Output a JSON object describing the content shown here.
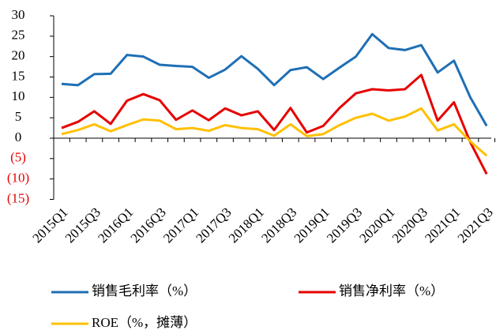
{
  "chart_data": {
    "type": "line",
    "categories": [
      "2015Q1",
      null,
      "2015Q3",
      null,
      "2016Q1",
      null,
      "2016Q3",
      null,
      "2017Q1",
      null,
      "2017Q3",
      null,
      "2018Q1",
      null,
      "2018Q3",
      null,
      "2019Q1",
      null,
      "2019Q3",
      null,
      "2020Q1",
      null,
      "2020Q3",
      null,
      "2021Q1",
      null,
      "2021Q3"
    ],
    "series": [
      {
        "name": "销售毛利率（%）",
        "color": "#1f6fb5",
        "values": [
          13.3,
          13,
          15.7,
          15.8,
          20.4,
          20,
          18,
          17.7,
          17.5,
          14.8,
          16.8,
          20.1,
          17,
          13,
          16.7,
          17.4,
          14.5,
          17.3,
          20,
          25.5,
          22.1,
          21.6,
          22.8,
          16.1,
          19,
          10,
          3
        ]
      },
      {
        "name": "销售净利率（%）",
        "color": "#e60000",
        "values": [
          2.5,
          4,
          6.6,
          3.5,
          9.2,
          10.8,
          9.3,
          4.5,
          6.8,
          4.4,
          7.3,
          5.6,
          6.6,
          2,
          7.4,
          1.4,
          3,
          7.4,
          11,
          12,
          11.7,
          12,
          15.5,
          4.3,
          8.8,
          -1,
          -8.8
        ]
      },
      {
        "name": "ROE（%，摊薄）",
        "color": "#ffc000",
        "values": [
          1,
          2,
          3.4,
          1.7,
          3.2,
          4.6,
          4.3,
          2.2,
          2.5,
          1.8,
          3.2,
          2.5,
          2.2,
          0.6,
          3.4,
          0.5,
          1,
          3.2,
          5,
          6,
          4.3,
          5.3,
          7.3,
          1.9,
          3.4,
          -0.8,
          -4.3
        ]
      }
    ],
    "ylim": [
      -15,
      30
    ],
    "yticks": [
      {
        "value": -15,
        "label": "(15)"
      },
      {
        "value": -10,
        "label": "(10)"
      },
      {
        "value": -5,
        "label": "(5)"
      },
      0,
      5,
      10,
      15,
      20,
      25,
      30
    ],
    "negative_tick_color": "#e60000"
  }
}
